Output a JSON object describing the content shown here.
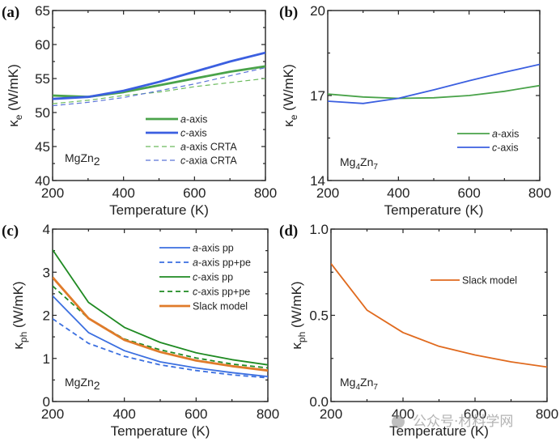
{
  "chart_data": [
    {
      "id": "a",
      "type": "line",
      "panel_label": "(a)",
      "title": "",
      "xlabel": "Temperature (K)",
      "ylabel": "κe (W/mK)",
      "ylabel_main": "κ",
      "ylabel_sub": "e",
      "ylabel_unit": " (W/mK)",
      "xlim": [
        200,
        800
      ],
      "ylim": [
        40,
        65
      ],
      "xticks": [
        200,
        400,
        600,
        800
      ],
      "yticks": [
        40,
        45,
        50,
        55,
        60,
        65
      ],
      "ytick_labels": [
        "40",
        "45",
        "50",
        "55",
        "60",
        "65"
      ],
      "annotation": {
        "base": "MgZn",
        "sub1": "2",
        "mid": "",
        "sub2": ""
      },
      "legend_position": "lower-right",
      "x": [
        200,
        300,
        400,
        500,
        600,
        700,
        800
      ],
      "series": [
        {
          "name": "a-axis",
          "italic": "a",
          "rest": "-axis",
          "color": "#4aa34a",
          "dash": false,
          "width": "thick",
          "values": [
            52.5,
            52.3,
            53.0,
            54.0,
            55.0,
            56.0,
            56.8
          ]
        },
        {
          "name": "c-axis",
          "italic": "c",
          "rest": "-axis",
          "color": "#3b5fe0",
          "dash": false,
          "width": "thick",
          "values": [
            52.0,
            52.3,
            53.2,
            54.5,
            56.0,
            57.5,
            58.8
          ]
        },
        {
          "name": "a-axis CRTA",
          "italic": "a",
          "rest": "-axis CRTA",
          "color": "#6cbb5e",
          "dash": true,
          "width": "thin",
          "values": [
            51.3,
            51.8,
            52.5,
            53.0,
            53.8,
            54.4,
            55.0
          ]
        },
        {
          "name": "c-axia CRTA",
          "italic": "c",
          "rest": "-axia CRTA",
          "color": "#5b74d8",
          "dash": true,
          "width": "thin",
          "values": [
            51.0,
            51.5,
            52.2,
            53.2,
            54.2,
            55.4,
            56.6
          ]
        }
      ]
    },
    {
      "id": "b",
      "type": "line",
      "panel_label": "(b)",
      "title": "",
      "xlabel": "Temperature (K)",
      "ylabel": "κe (W/mK)",
      "ylabel_main": "κ",
      "ylabel_sub": "e",
      "ylabel_unit": " (W/mK)",
      "xlim": [
        200,
        800
      ],
      "ylim": [
        14,
        20
      ],
      "xticks": [
        200,
        400,
        600,
        800
      ],
      "yticks": [
        14,
        17,
        20
      ],
      "ytick_labels": [
        "14",
        "17",
        "20"
      ],
      "minor_yticks": [
        15.5,
        18.5
      ],
      "annotation": {
        "base": "Mg",
        "sub1": "4",
        "mid": "Zn",
        "sub2": "7"
      },
      "legend_position": "lower-right",
      "x": [
        200,
        300,
        400,
        500,
        600,
        700,
        800
      ],
      "series": [
        {
          "name": "a-axis",
          "italic": "a",
          "rest": "-axis",
          "color": "#4aa34a",
          "dash": false,
          "width": "normal",
          "values": [
            17.05,
            16.95,
            16.9,
            16.92,
            17.0,
            17.15,
            17.35
          ]
        },
        {
          "name": "c-axis",
          "italic": "c",
          "rest": "-axis",
          "color": "#3b5fe0",
          "dash": false,
          "width": "normal",
          "values": [
            16.8,
            16.72,
            16.9,
            17.2,
            17.52,
            17.82,
            18.1
          ]
        }
      ]
    },
    {
      "id": "c",
      "type": "line",
      "panel_label": "(c)",
      "title": "",
      "xlabel": "Temperature (K)",
      "ylabel": "κph (W/mK)",
      "ylabel_main": "κ",
      "ylabel_sub": "ph",
      "ylabel_unit": " (W/mK)",
      "xlim": [
        200,
        800
      ],
      "ylim": [
        0,
        4
      ],
      "xticks": [
        200,
        400,
        600,
        800
      ],
      "yticks": [
        0,
        1,
        2,
        3,
        4
      ],
      "ytick_labels": [
        "0",
        "1",
        "2",
        "3",
        "4"
      ],
      "annotation": {
        "base": "MgZn",
        "sub1": "2",
        "mid": "",
        "sub2": ""
      },
      "legend_position": "upper-right",
      "x": [
        200,
        300,
        400,
        500,
        600,
        700,
        800
      ],
      "series": [
        {
          "name": "a-axis pp",
          "italic": "a",
          "rest": "-axis pp",
          "color": "#3b6fe0",
          "dash": false,
          "width": "normal",
          "values": [
            2.45,
            1.6,
            1.18,
            0.92,
            0.78,
            0.67,
            0.58
          ]
        },
        {
          "name": "a-axis pp+pe",
          "italic": "a",
          "rest": "-axis pp+pe",
          "color": "#3b6fe0",
          "dash": true,
          "width": "normal",
          "values": [
            1.92,
            1.35,
            1.05,
            0.85,
            0.72,
            0.62,
            0.55
          ]
        },
        {
          "name": "c-axis pp",
          "italic": "c",
          "rest": "-axis pp",
          "color": "#1f8a22",
          "dash": false,
          "width": "normal",
          "values": [
            3.52,
            2.3,
            1.72,
            1.37,
            1.13,
            0.97,
            0.85
          ]
        },
        {
          "name": "c-axis pp+pe",
          "italic": "c",
          "rest": "-axis pp+pe",
          "color": "#1f8a22",
          "dash": true,
          "width": "normal",
          "values": [
            2.68,
            1.93,
            1.45,
            1.2,
            1.01,
            0.87,
            0.78
          ]
        },
        {
          "name": "Slack model",
          "italic": "",
          "rest": "Slack model",
          "color": "#e07b2a",
          "dash": false,
          "width": "thick",
          "values": [
            2.88,
            1.93,
            1.43,
            1.15,
            0.95,
            0.82,
            0.72
          ]
        }
      ]
    },
    {
      "id": "d",
      "type": "line",
      "panel_label": "(d)",
      "title": "",
      "xlabel": "Temperature (K)",
      "ylabel": "κph (W/mK)",
      "ylabel_main": "κ",
      "ylabel_sub": "ph",
      "ylabel_unit": " (W/mK)",
      "xlim": [
        200,
        800
      ],
      "ylim": [
        0,
        1
      ],
      "xticks": [
        200,
        400,
        600,
        800
      ],
      "yticks": [
        0,
        0.5,
        1.0
      ],
      "ytick_labels": [
        "0.0",
        "0.5",
        "1.0"
      ],
      "minor_yticks": [
        0.25,
        0.75
      ],
      "annotation": {
        "base": "Mg",
        "sub1": "4",
        "mid": "Zn",
        "sub2": "7"
      },
      "legend_position": "upper-right",
      "x": [
        200,
        300,
        400,
        500,
        600,
        700,
        800
      ],
      "series": [
        {
          "name": "Slack model",
          "italic": "",
          "rest": "Slack model",
          "color": "#e06a1e",
          "dash": false,
          "width": "normal",
          "values": [
            0.8,
            0.53,
            0.4,
            0.32,
            0.27,
            0.23,
            0.2
          ]
        }
      ]
    }
  ],
  "watermark": {
    "text": "公众号·材料学网"
  }
}
